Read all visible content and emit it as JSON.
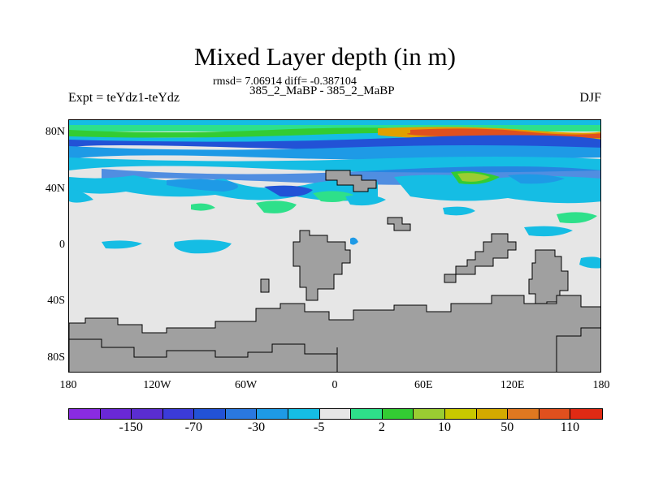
{
  "title": "Mixed Layer depth (in m)",
  "stats_line": "rmsd= 7.06914 diff= -0.387104",
  "runs_line": "385_2_MaBP - 385_2_MaBP",
  "left_label": "Expt = teYdz1-teYdz",
  "right_label": "DJF",
  "map": {
    "ocean_background": "#e6e6e6",
    "land_color": "#a0a0a0",
    "lat_ticks": [
      {
        "label": "80N",
        "lat": 80
      },
      {
        "label": "40N",
        "lat": 40
      },
      {
        "label": "0",
        "lat": 0
      },
      {
        "label": "40S",
        "lat": -40
      },
      {
        "label": "80S",
        "lat": -80
      }
    ],
    "lon_ticks": [
      {
        "label": "180",
        "lon": -180
      },
      {
        "label": "120W",
        "lon": -120
      },
      {
        "label": "60W",
        "lon": -60
      },
      {
        "label": "0",
        "lon": 0
      },
      {
        "label": "60E",
        "lon": 60
      },
      {
        "label": "120E",
        "lon": 120
      },
      {
        "label": "180",
        "lon": 180
      }
    ]
  },
  "colorbar": {
    "colors": [
      "#8a2be2",
      "#6a28d6",
      "#5a2dd0",
      "#3b3bd8",
      "#2252d6",
      "#2a78e0",
      "#1e9ae6",
      "#15bde4",
      "#e6e6e6",
      "#2ee08a",
      "#33cc33",
      "#9acd32",
      "#c8c800",
      "#d4aa00",
      "#e07820",
      "#e0501e",
      "#e02a14"
    ],
    "labels": [
      {
        "text": "-150",
        "after_index": 1
      },
      {
        "text": "-70",
        "after_index": 3
      },
      {
        "text": "-30",
        "after_index": 5
      },
      {
        "text": "-5",
        "after_index": 7
      },
      {
        "text": "2",
        "after_index": 9
      },
      {
        "text": "10",
        "after_index": 11
      },
      {
        "text": "50",
        "after_index": 13
      },
      {
        "text": "110",
        "after_index": 15
      }
    ]
  }
}
